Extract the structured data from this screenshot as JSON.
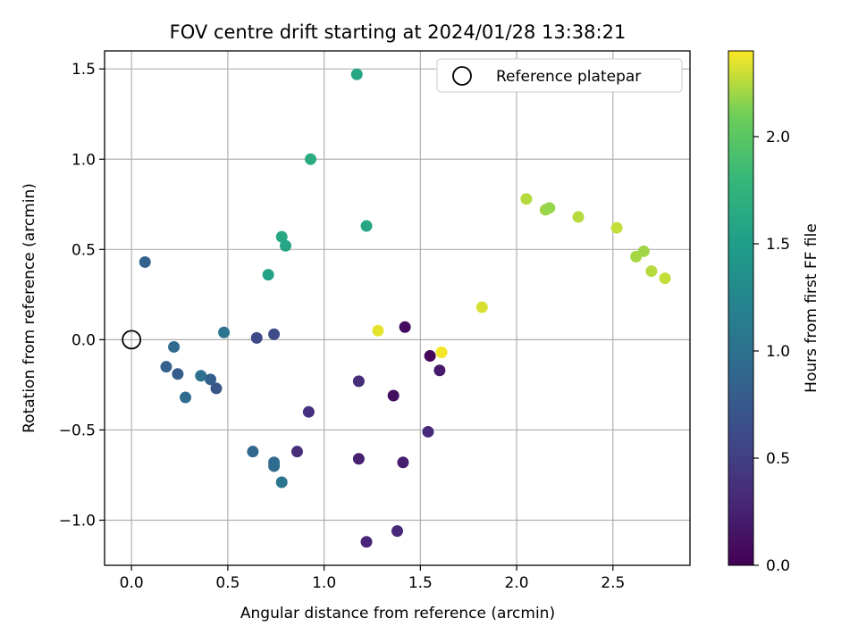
{
  "chart_data": {
    "type": "scatter",
    "title": "FOV centre drift starting at 2024/01/28 13:38:21",
    "xlabel": "Angular distance from reference (arcmin)",
    "ylabel": "Rotation from reference (arcmin)",
    "xlim": [
      -0.14,
      2.9
    ],
    "ylim": [
      -1.25,
      1.6
    ],
    "x_ticks": [
      0.0,
      0.5,
      1.0,
      1.5,
      2.0,
      2.5
    ],
    "x_tick_labels": [
      "0.0",
      "0.5",
      "1.0",
      "1.5",
      "2.0",
      "2.5"
    ],
    "y_ticks": [
      -1.0,
      -0.5,
      0.0,
      0.5,
      1.0,
      1.5
    ],
    "y_tick_labels": [
      "−1.0",
      "−0.5",
      "0.0",
      "0.5",
      "1.0",
      "1.5"
    ],
    "grid": true,
    "colormap": "viridis",
    "colorbar": {
      "label": "Hours from first FF file",
      "range": [
        0.0,
        2.4
      ],
      "ticks": [
        0.0,
        0.5,
        1.0,
        1.5,
        2.0
      ],
      "tick_labels": [
        "0.0",
        "0.5",
        "1.0",
        "1.5",
        "2.0"
      ]
    },
    "legend": {
      "placement": "top-right",
      "entries": [
        {
          "label": "Reference platepar",
          "marker": "open-circle",
          "x": 0.0,
          "y": 0.0
        }
      ]
    },
    "points": [
      {
        "x": 1.55,
        "y": -0.09,
        "c": 0.05
      },
      {
        "x": 1.42,
        "y": 0.07,
        "c": 0.08
      },
      {
        "x": 1.36,
        "y": -0.31,
        "c": 0.1
      },
      {
        "x": 1.6,
        "y": -0.17,
        "c": 0.2
      },
      {
        "x": 1.41,
        "y": -0.68,
        "c": 0.22
      },
      {
        "x": 1.18,
        "y": -0.66,
        "c": 0.25
      },
      {
        "x": 1.22,
        "y": -1.12,
        "c": 0.28
      },
      {
        "x": 1.38,
        "y": -1.06,
        "c": 0.3
      },
      {
        "x": 1.54,
        "y": -0.51,
        "c": 0.32
      },
      {
        "x": 1.18,
        "y": -0.23,
        "c": 0.35
      },
      {
        "x": 0.86,
        "y": -0.62,
        "c": 0.35
      },
      {
        "x": 0.92,
        "y": -0.4,
        "c": 0.38
      },
      {
        "x": 0.65,
        "y": 0.01,
        "c": 0.58
      },
      {
        "x": 0.74,
        "y": 0.03,
        "c": 0.62
      },
      {
        "x": 0.44,
        "y": -0.27,
        "c": 0.72
      },
      {
        "x": 0.41,
        "y": -0.22,
        "c": 0.82
      },
      {
        "x": 0.24,
        "y": -0.19,
        "c": 0.8
      },
      {
        "x": 0.18,
        "y": -0.15,
        "c": 0.85
      },
      {
        "x": 0.07,
        "y": 0.43,
        "c": 0.85
      },
      {
        "x": 0.22,
        "y": -0.04,
        "c": 0.92
      },
      {
        "x": 0.28,
        "y": -0.32,
        "c": 0.95
      },
      {
        "x": 0.36,
        "y": -0.2,
        "c": 1.0
      },
      {
        "x": 0.63,
        "y": -0.62,
        "c": 0.9
      },
      {
        "x": 0.74,
        "y": -0.68,
        "c": 0.92
      },
      {
        "x": 0.74,
        "y": -0.7,
        "c": 0.95
      },
      {
        "x": 0.78,
        "y": -0.79,
        "c": 1.05
      },
      {
        "x": 0.48,
        "y": 0.04,
        "c": 1.05
      },
      {
        "x": 0.71,
        "y": 0.36,
        "c": 1.55
      },
      {
        "x": 0.8,
        "y": 0.52,
        "c": 1.58
      },
      {
        "x": 0.78,
        "y": 0.57,
        "c": 1.62
      },
      {
        "x": 1.22,
        "y": 0.63,
        "c": 1.6
      },
      {
        "x": 0.93,
        "y": 1.0,
        "c": 1.65
      },
      {
        "x": 1.17,
        "y": 1.47,
        "c": 1.6
      },
      {
        "x": 1.28,
        "y": 0.05,
        "c": 2.35
      },
      {
        "x": 1.61,
        "y": -0.07,
        "c": 2.38
      },
      {
        "x": 1.82,
        "y": 0.18,
        "c": 2.32
      },
      {
        "x": 2.05,
        "y": 0.78,
        "c": 2.25
      },
      {
        "x": 2.15,
        "y": 0.72,
        "c": 2.2
      },
      {
        "x": 2.17,
        "y": 0.73,
        "c": 2.18
      },
      {
        "x": 2.32,
        "y": 0.68,
        "c": 2.25
      },
      {
        "x": 2.52,
        "y": 0.62,
        "c": 2.28
      },
      {
        "x": 2.62,
        "y": 0.46,
        "c": 2.22
      },
      {
        "x": 2.66,
        "y": 0.49,
        "c": 2.2
      },
      {
        "x": 2.7,
        "y": 0.38,
        "c": 2.25
      },
      {
        "x": 2.77,
        "y": 0.34,
        "c": 2.28
      }
    ]
  }
}
